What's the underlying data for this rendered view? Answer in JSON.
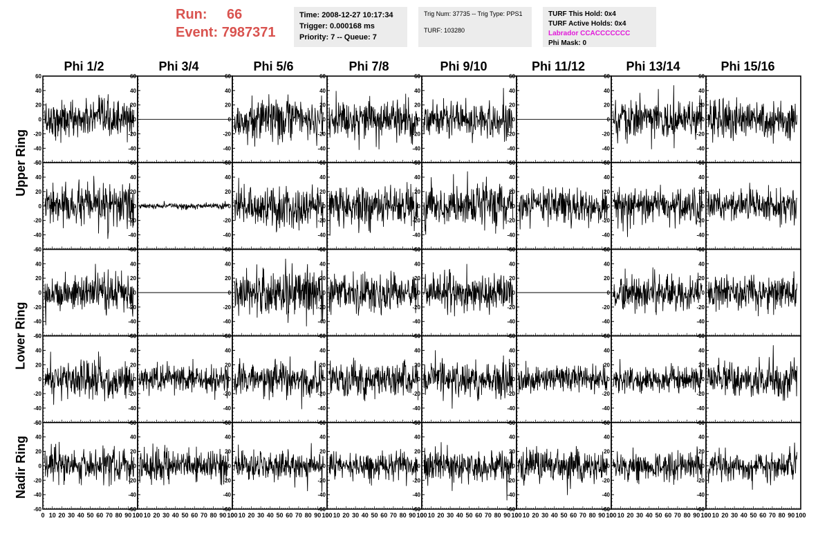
{
  "header": {
    "run_label": "Run:",
    "run_value": "66",
    "event_label": "Event:",
    "event_value": "7987371",
    "time": "Time: 2008-12-27 10:17:34",
    "trigger": "Trigger: 0.000168 ms",
    "priority": "Priority: 7 -- Queue: 7",
    "trig_num": "Trig Num: 37735 -- Trig Type: PPS1",
    "turf": "TURF: 103280",
    "turf_hold": "TURF This Hold: 0x4",
    "turf_active": "TURF Active Holds: 0x4",
    "labrador": "Labrador CCACCCCCCC",
    "phi_mask": "Phi Mask: 0"
  },
  "columns": [
    "Phi 1/2",
    "Phi 3/4",
    "Phi 5/6",
    "Phi 7/8",
    "Phi 9/10",
    "Phi 11/12",
    "Phi 13/14",
    "Phi 15/16"
  ],
  "ring_labels": [
    "Upper Ring",
    "Lower Ring",
    "Nadir Ring"
  ],
  "colors": {
    "red": "#d9534f",
    "magenta": "#e11ad9",
    "panel": "#ececec",
    "trace": "#000000"
  },
  "chart_data": {
    "type": "line",
    "layout": "grid of waveform panels, 5 rows x 8 columns",
    "x_range": [
      0,
      100
    ],
    "y_range": [
      -60,
      60
    ],
    "x_ticks": [
      0,
      10,
      20,
      30,
      40,
      50,
      60,
      70,
      80,
      90,
      100
    ],
    "y_ticks": [
      -60,
      -40,
      -20,
      0,
      20,
      40,
      60
    ],
    "traces": [
      [
        {
          "amp": 13
        },
        {
          "amp": 0
        },
        {
          "amp": 15
        },
        {
          "amp": 14
        },
        {
          "amp": 13
        },
        {
          "amp": 0
        },
        {
          "amp": 14
        },
        {
          "amp": 13
        }
      ],
      [
        {
          "amp": 14
        },
        {
          "amp": 2
        },
        {
          "amp": 15
        },
        {
          "amp": 15
        },
        {
          "amp": 15
        },
        {
          "amp": 12
        },
        {
          "amp": 12
        },
        {
          "amp": 12
        }
      ],
      [
        {
          "amp": 13
        },
        {
          "amp": 0
        },
        {
          "amp": 18
        },
        {
          "amp": 14
        },
        {
          "amp": 13
        },
        {
          "amp": 0
        },
        {
          "amp": 12
        },
        {
          "amp": 11
        }
      ],
      [
        {
          "amp": 13
        },
        {
          "amp": 10
        },
        {
          "amp": 12
        },
        {
          "amp": 12
        },
        {
          "amp": 12
        },
        {
          "amp": 9
        },
        {
          "amp": 10
        },
        {
          "amp": 13
        }
      ],
      [
        {
          "amp": 12
        },
        {
          "amp": 11
        },
        {
          "amp": 10
        },
        {
          "amp": 10
        },
        {
          "amp": 12
        },
        {
          "amp": 12
        },
        {
          "amp": 10
        },
        {
          "amp": 11
        }
      ]
    ]
  }
}
